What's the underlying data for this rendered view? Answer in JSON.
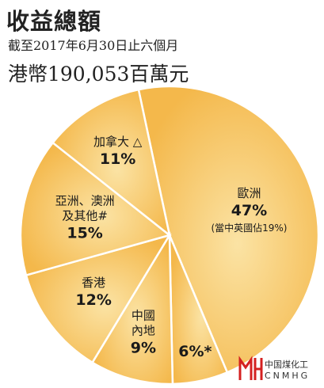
{
  "header": {
    "title": "收益總額",
    "subtitle": "截至2017年6月30日止六個月",
    "total": "港幣190,053百萬元"
  },
  "logo": {
    "cn_name": "中国煤化工",
    "en_name": "CNMHG",
    "color": "#d42020"
  },
  "colors": {
    "slice_fill": "#f4b84b",
    "slice_highlight": "#fbe3a4",
    "divider": "#ffffff"
  },
  "chart_data": {
    "type": "pie",
    "title": "",
    "slices": [
      {
        "name": "歐洲",
        "value": 47,
        "label": "47%",
        "note": "(當中英國佔19%)"
      },
      {
        "name": "",
        "value": 6,
        "label": "6%*",
        "note": ""
      },
      {
        "name": "中國\n內地",
        "value": 9,
        "label": "9%",
        "note": ""
      },
      {
        "name": "香港",
        "value": 12,
        "label": "12%",
        "note": ""
      },
      {
        "name": "亞洲、澳洲\n及其他#",
        "value": 15,
        "label": "15%",
        "note": ""
      },
      {
        "name": "加拿大 △",
        "value": 11,
        "label": "11%",
        "note": ""
      }
    ]
  }
}
